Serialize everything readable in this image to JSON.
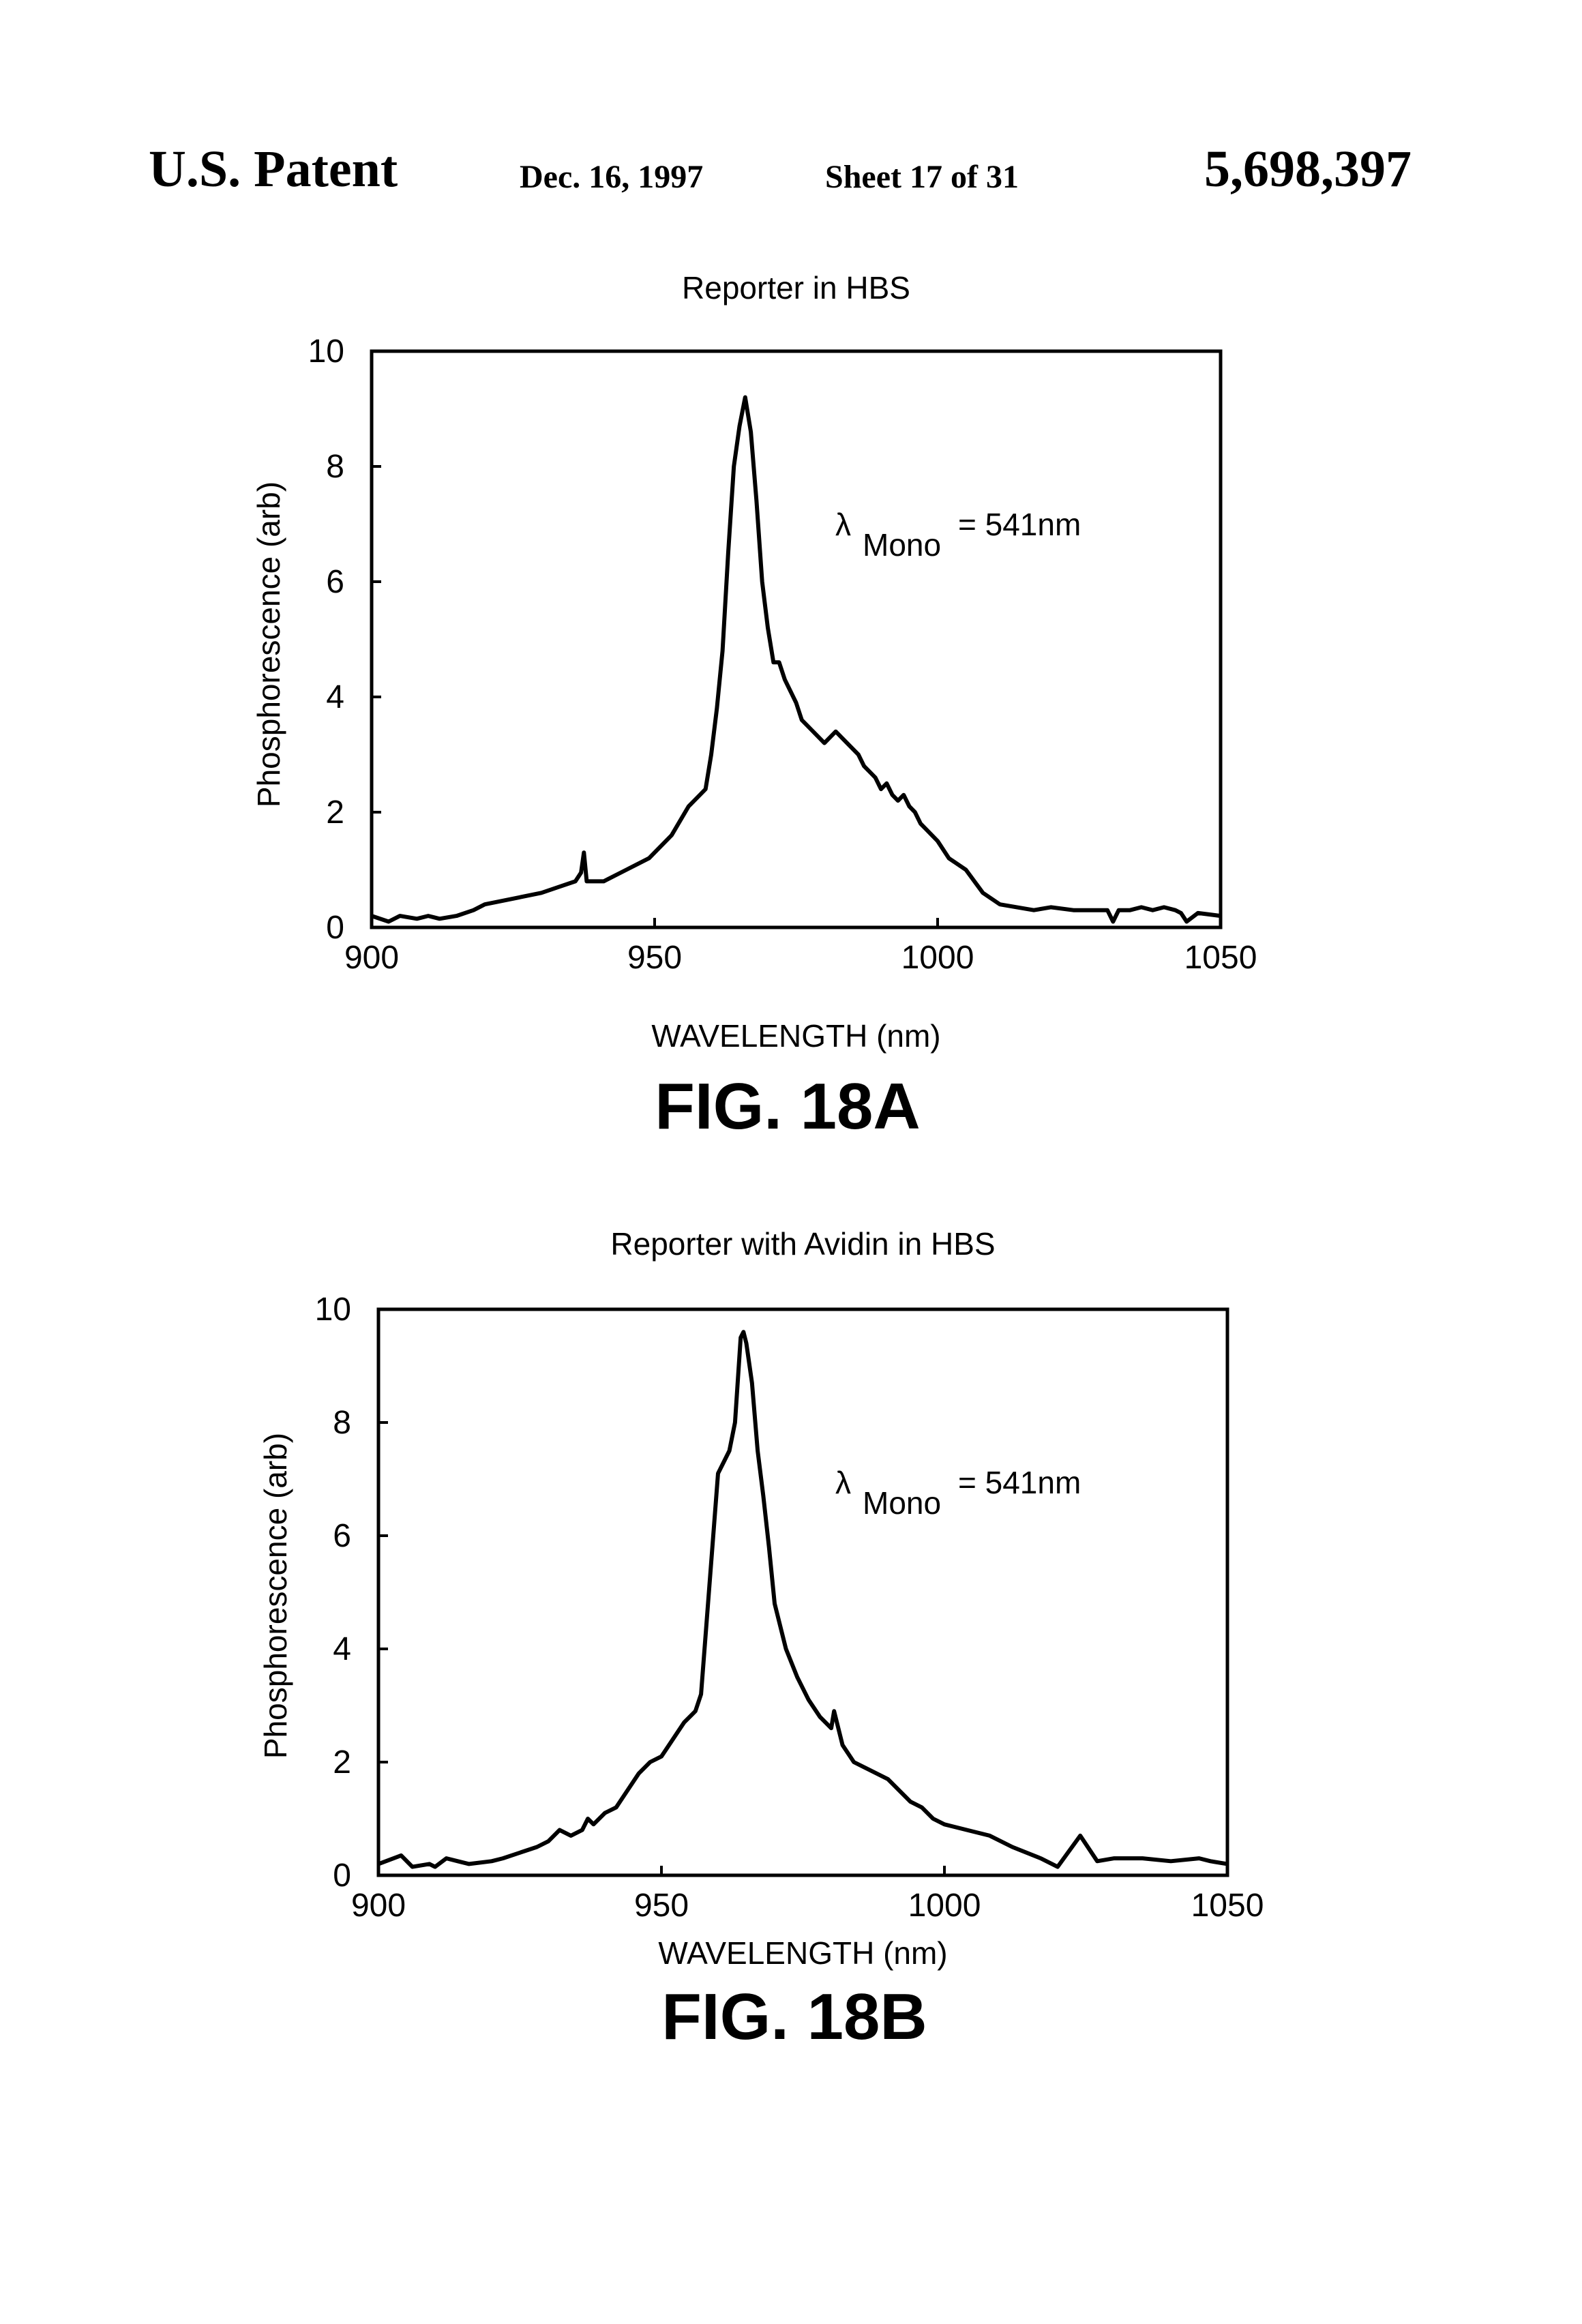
{
  "header": {
    "patent_label": "U.S. Patent",
    "date": "Dec. 16, 1997",
    "sheet": "Sheet 17 of 31",
    "patent_number": "5,698,397"
  },
  "chart_data": [
    {
      "type": "line",
      "title": "Reporter in HBS",
      "xlabel": "WAVELENGTH (nm)",
      "ylabel": "Phosphorescence (arb)",
      "figure_label": "FIG. 18A",
      "annotation": {
        "symbol": "λ",
        "subscript": "Mono",
        "text": "= 541nm"
      },
      "xlim": [
        900,
        1050
      ],
      "ylim": [
        0,
        10
      ],
      "x_ticks": [
        900,
        950,
        1000,
        1050
      ],
      "y_ticks": [
        0,
        2,
        4,
        6,
        8,
        10
      ],
      "grid": false,
      "series": [
        {
          "x": [
            900,
            903,
            905,
            908,
            910,
            912,
            915,
            918,
            920,
            925,
            930,
            933,
            936,
            937,
            937.5,
            938,
            941,
            945,
            949,
            953,
            956,
            958,
            959,
            960,
            961,
            962,
            963,
            964,
            965,
            966,
            967,
            968,
            969,
            970,
            971,
            972,
            973,
            974,
            975,
            976,
            978,
            980,
            982,
            984,
            986,
            987,
            988,
            989,
            990,
            991,
            992,
            993,
            994,
            995,
            996,
            997,
            998,
            999,
            1000,
            1002,
            1005,
            1008,
            1011,
            1014,
            1017,
            1020,
            1024,
            1027,
            1030,
            1031,
            1032,
            1034,
            1036,
            1038,
            1040,
            1042,
            1043,
            1044,
            1046,
            1050
          ],
          "y": [
            0.2,
            0.1,
            0.2,
            0.15,
            0.2,
            0.15,
            0.2,
            0.3,
            0.4,
            0.5,
            0.6,
            0.7,
            0.8,
            0.95,
            1.3,
            0.8,
            0.8,
            1.0,
            1.2,
            1.6,
            2.1,
            2.3,
            2.4,
            3.0,
            3.8,
            4.8,
            6.5,
            8.0,
            8.7,
            9.2,
            8.6,
            7.4,
            6.0,
            5.2,
            4.6,
            4.6,
            4.3,
            4.1,
            3.9,
            3.6,
            3.4,
            3.2,
            3.4,
            3.2,
            3.0,
            2.8,
            2.7,
            2.6,
            2.4,
            2.5,
            2.3,
            2.2,
            2.3,
            2.1,
            2.0,
            1.8,
            1.7,
            1.6,
            1.5,
            1.2,
            1.0,
            0.6,
            0.4,
            0.35,
            0.3,
            0.35,
            0.3,
            0.3,
            0.3,
            0.1,
            0.3,
            0.3,
            0.35,
            0.3,
            0.35,
            0.3,
            0.25,
            0.1,
            0.25,
            0.2
          ]
        }
      ]
    },
    {
      "type": "line",
      "title": "Reporter with Avidin in HBS",
      "xlabel": "WAVELENGTH (nm)",
      "ylabel": "Phosphorescence (arb)",
      "figure_label": "FIG. 18B",
      "annotation": {
        "symbol": "λ",
        "subscript": "Mono",
        "text": "= 541nm"
      },
      "xlim": [
        900,
        1050
      ],
      "ylim": [
        0,
        10
      ],
      "x_ticks": [
        900,
        950,
        1000,
        1050
      ],
      "y_ticks": [
        0,
        2,
        4,
        6,
        8,
        10
      ],
      "grid": false,
      "series": [
        {
          "x": [
            900,
            904,
            906,
            909,
            910,
            912,
            914,
            916,
            920,
            922,
            925,
            928,
            930,
            932,
            934,
            936,
            937,
            938,
            940,
            942,
            944,
            946,
            948,
            950,
            952,
            954,
            956,
            957,
            958,
            959,
            960,
            961,
            962,
            963,
            964,
            964.5,
            965,
            966,
            967,
            968,
            969,
            970,
            971,
            972,
            974,
            976,
            978,
            980,
            980.5,
            981,
            982,
            984,
            986,
            990,
            992,
            994,
            996,
            998,
            1000,
            1004,
            1008,
            1012,
            1017,
            1020,
            1024,
            1027,
            1030,
            1035,
            1040,
            1045,
            1047,
            1050
          ],
          "y": [
            0.2,
            0.35,
            0.15,
            0.2,
            0.15,
            0.3,
            0.25,
            0.2,
            0.25,
            0.3,
            0.4,
            0.5,
            0.6,
            0.8,
            0.7,
            0.8,
            1.0,
            0.9,
            1.1,
            1.2,
            1.5,
            1.8,
            2.0,
            2.1,
            2.4,
            2.7,
            2.9,
            3.2,
            4.5,
            5.8,
            7.1,
            7.3,
            7.5,
            8.0,
            9.5,
            9.6,
            9.4,
            8.7,
            7.5,
            6.7,
            5.8,
            4.8,
            4.4,
            4.0,
            3.5,
            3.1,
            2.8,
            2.6,
            2.9,
            2.7,
            2.3,
            2.0,
            1.9,
            1.7,
            1.5,
            1.3,
            1.2,
            1.0,
            0.9,
            0.8,
            0.7,
            0.5,
            0.3,
            0.15,
            0.7,
            0.25,
            0.3,
            0.3,
            0.25,
            0.3,
            0.25,
            0.2
          ]
        }
      ]
    }
  ]
}
